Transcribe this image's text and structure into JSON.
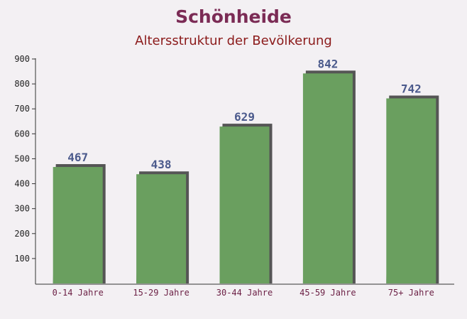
{
  "chart_data": {
    "type": "bar",
    "title": "Schönheide",
    "subtitle": "Altersstruktur der Bevölkerung",
    "categories": [
      "0-14 Jahre",
      "15-29 Jahre",
      "30-44 Jahre",
      "45-59 Jahre",
      "75+ Jahre"
    ],
    "values": [
      467,
      438,
      629,
      842,
      742
    ],
    "color": "#6a9f5f",
    "ylim": [
      0,
      900
    ],
    "yticks": [
      100,
      200,
      300,
      400,
      500,
      600,
      700,
      800,
      900
    ],
    "grid": false
  }
}
